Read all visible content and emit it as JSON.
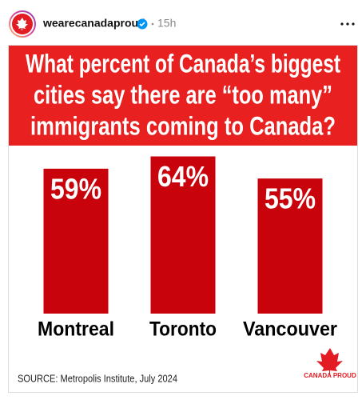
{
  "post": {
    "username": "wearecanadaproud",
    "time": "15h",
    "source": "SOURCE: Metropolis Institute, July 2024",
    "logo_text": "CANADA PROUD"
  },
  "chart_data": {
    "type": "bar",
    "title": [
      "What percent of Canada’s biggest",
      "cities say there are “too many”",
      "immigrants coming to Canada?"
    ],
    "categories": [
      "Montreal",
      "Toronto",
      "Vancouver"
    ],
    "values": [
      59,
      64,
      55
    ],
    "value_labels": [
      "59%",
      "64%",
      "55%"
    ],
    "color": "#c8030b",
    "ylim": [
      0,
      128
    ]
  }
}
